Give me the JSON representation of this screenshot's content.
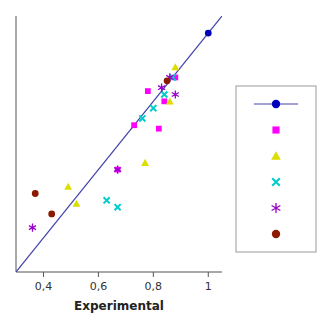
{
  "chart_data": {
    "type": "scatter",
    "xlabel": "Experimental",
    "xlim": [
      0.3,
      1.05
    ],
    "ylim": [
      0.3,
      1.05
    ],
    "xticks": [
      {
        "value": 0.4,
        "label": "0,4"
      },
      {
        "value": 0.6,
        "label": "0,6"
      },
      {
        "value": 0.8,
        "label": "0,8"
      },
      1
    ],
    "tick_labels": "x",
    "legend": "right",
    "series": [
      {
        "type": "line",
        "color": "#4444aa",
        "x": [
          0.3,
          1.05
        ],
        "values": [
          0.3,
          1.05
        ]
      },
      {
        "color": "#0000bb",
        "marker": "circle",
        "x": [
          1.0
        ],
        "values": [
          1.0
        ]
      },
      {
        "color": "#ff00ff",
        "marker": "square",
        "x": [
          0.67,
          0.73,
          0.78,
          0.82,
          0.84,
          0.88
        ],
        "values": [
          0.6,
          0.73,
          0.83,
          0.72,
          0.8,
          0.87
        ]
      },
      {
        "color": "#dddd00",
        "marker": "triangle",
        "x": [
          0.49,
          0.52,
          0.77,
          0.86,
          0.88
        ],
        "values": [
          0.55,
          0.5,
          0.62,
          0.8,
          0.9
        ]
      },
      {
        "color": "#00cccc",
        "marker": "x",
        "x": [
          0.63,
          0.67,
          0.76,
          0.8,
          0.84,
          0.87
        ],
        "values": [
          0.51,
          0.49,
          0.75,
          0.78,
          0.82,
          0.87
        ]
      },
      {
        "color": "#9900cc",
        "marker": "asterisk",
        "x": [
          0.36,
          0.67,
          0.83,
          0.86,
          0.88
        ],
        "values": [
          0.43,
          0.6,
          0.84,
          0.87,
          0.82
        ]
      },
      {
        "color": "#8b1a00",
        "marker": "circle",
        "x": [
          0.37,
          0.43,
          0.85
        ],
        "values": [
          0.53,
          0.47,
          0.86
        ]
      }
    ]
  }
}
